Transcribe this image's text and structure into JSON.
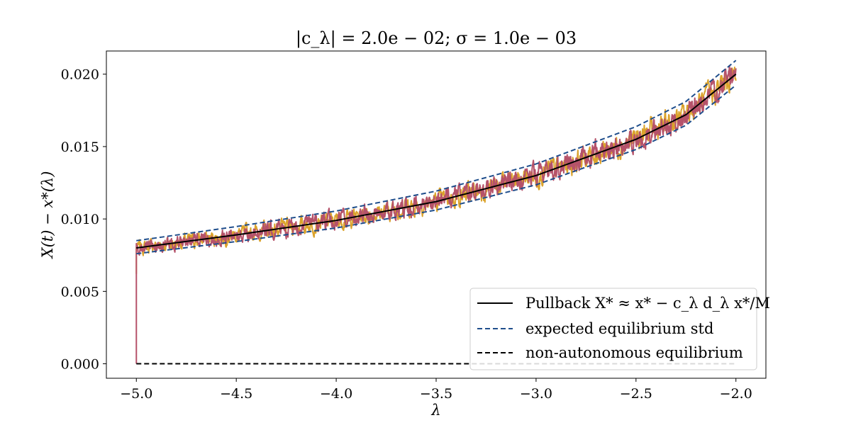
{
  "chart_data": {
    "type": "line",
    "title": "|c_λ| = 2.0e − 02; σ = 1.0e − 03",
    "xlabel": "λ",
    "ylabel": "X(t) − x*(λ)",
    "xlim": [
      -5.15,
      -1.85
    ],
    "ylim": [
      -0.001,
      0.0216
    ],
    "xticks": [
      -5.0,
      -4.5,
      -4.0,
      -3.5,
      -3.0,
      -2.5,
      -2.0
    ],
    "xtick_labels": [
      "−5.0",
      "−4.5",
      "−4.0",
      "−3.5",
      "−3.0",
      "−2.5",
      "−2.0"
    ],
    "yticks": [
      0.0,
      0.005,
      0.01,
      0.015,
      0.02
    ],
    "ytick_labels": [
      "0.000",
      "0.005",
      "0.010",
      "0.015",
      "0.020"
    ],
    "grid": false,
    "legend_position": "bottom-right",
    "pullback_curve": {
      "x": [
        -5.0,
        -4.5,
        -4.0,
        -3.5,
        -3.0,
        -2.5,
        -2.25,
        -2.0
      ],
      "y": [
        0.008,
        0.0089,
        0.0099,
        0.0112,
        0.013,
        0.0155,
        0.0172,
        0.02
      ]
    },
    "series": [
      {
        "name": "Pullback X* ≈ x* − c_λ d_λ x*/M",
        "color": "#000000",
        "style": "solid",
        "ref": "pullback"
      },
      {
        "name": "expected equilibrium std",
        "color": "#1f4e8c",
        "style": "dashed",
        "ref": "std",
        "offset_lower": -0.0004,
        "offset_upper": 0.0005
      },
      {
        "name": "non-autonomous equilibrium",
        "color": "#000000",
        "style": "dashed",
        "ref": "zero",
        "x": [
          -5.0,
          -2.0
        ],
        "y": [
          0.0,
          0.0
        ]
      }
    ],
    "noisy_paths": [
      {
        "color": "#dba32c",
        "start_y": 0.0062,
        "noise_amplitude": 0.0004
      },
      {
        "color": "#b5526a",
        "start_y": 0.0,
        "noise_amplitude": 0.0004
      }
    ]
  }
}
